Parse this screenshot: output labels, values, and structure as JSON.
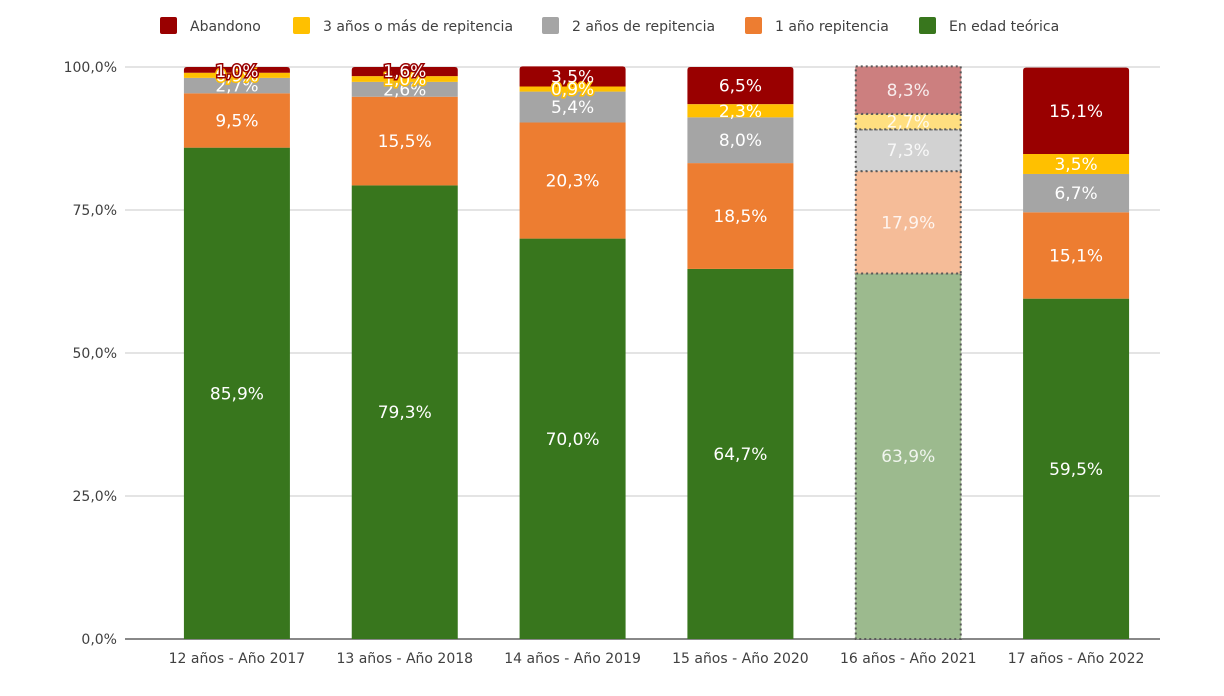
{
  "chart_data": {
    "type": "bar",
    "stacked": true,
    "title": "",
    "xlabel": "",
    "ylabel": "",
    "ylim": [
      0,
      100
    ],
    "y_ticks": [
      "0,0%",
      "25,0%",
      "50,0%",
      "75,0%",
      "100,0%"
    ],
    "y_tick_values": [
      0,
      25,
      50,
      75,
      100
    ],
    "grid": true,
    "legend_position": "top",
    "categories": [
      "12 años - Año 2017",
      "13 años - Año 2018",
      "14 años - Año 2019",
      "15 años - Año 2020",
      "16 años - Año 2021",
      "17 años - Año 2022"
    ],
    "highlighted_category_index": 4,
    "series": [
      {
        "name": "En edad teórica",
        "color": "#38761d",
        "faded_color": "#9cba8e",
        "values": [
          85.9,
          79.3,
          70.0,
          64.7,
          63.9,
          59.5
        ],
        "labels": [
          "85,9%",
          "79,3%",
          "70,0%",
          "64,7%",
          "63,9%",
          "59,5%"
        ]
      },
      {
        "name": "1 año repitencia",
        "color": "#ed7d31",
        "faded_color": "#f5bc98",
        "values": [
          9.5,
          15.5,
          20.3,
          18.5,
          17.9,
          15.1
        ],
        "labels": [
          "9,5%",
          "15,5%",
          "20,3%",
          "18,5%",
          "17,9%",
          "15,1%"
        ]
      },
      {
        "name": "2 años de repitencia",
        "color": "#a5a5a5",
        "faded_color": "#d2d2d2",
        "values": [
          2.7,
          2.6,
          5.4,
          8.0,
          7.3,
          6.7
        ],
        "labels": [
          "2,7%",
          "2,6%",
          "5,4%",
          "8,0%",
          "7,3%",
          "6,7%"
        ]
      },
      {
        "name": "3 años o más de repitencia",
        "color": "#ffc000",
        "faded_color": "#ffdf80",
        "values": [
          0.9,
          1.0,
          0.9,
          2.3,
          2.7,
          3.5
        ],
        "labels": [
          "0,9%",
          "1,0%",
          "0,9%",
          "2,3%",
          "2,7%",
          "3,5%"
        ]
      },
      {
        "name": "Abandono",
        "color": "#990000",
        "faded_color": "#cc7f7f",
        "values": [
          1.0,
          1.6,
          3.5,
          6.5,
          8.3,
          15.1
        ],
        "labels": [
          "1,0%",
          "1,6%",
          "3,5%",
          "6,5%",
          "8,3%",
          "15,1%"
        ]
      }
    ],
    "legend_order": [
      "Abandono",
      "3 años o más de repitencia",
      "2 años de repitencia",
      "1 año repitencia",
      "En edad teórica"
    ]
  }
}
